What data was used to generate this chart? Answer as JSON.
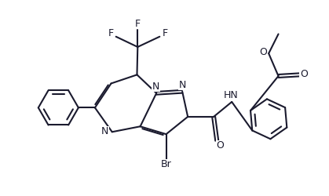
{
  "bg_color": "#ffffff",
  "line_color": "#1a1a2e",
  "bond_width": 1.5,
  "font_size": 9,
  "figsize": [
    4.19,
    2.5
  ],
  "dpi": 100,
  "xlim": [
    0,
    10
  ],
  "ylim": [
    0,
    6
  ]
}
